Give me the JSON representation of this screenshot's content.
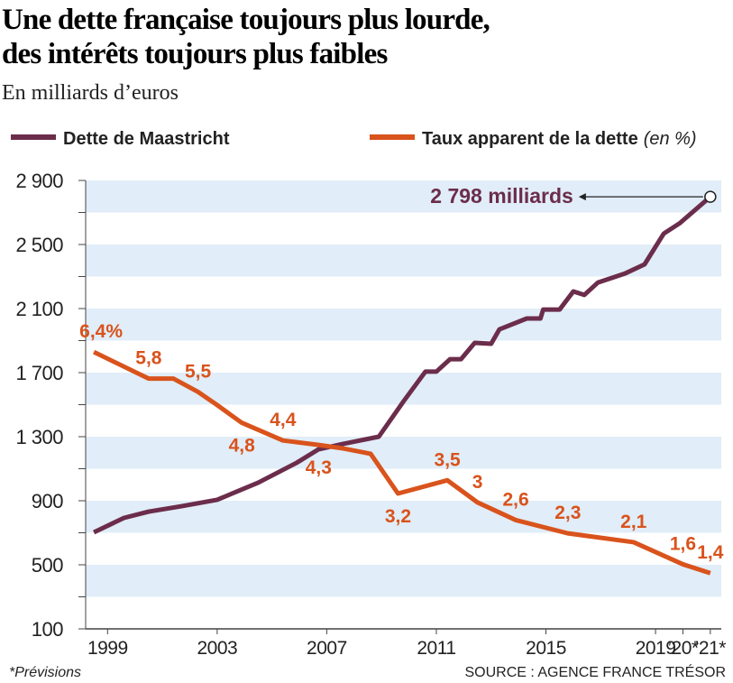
{
  "chart_data": {
    "type": "line",
    "title": [
      "Une dette française toujours plus lourde,",
      "des intérêts toujours plus faibles"
    ],
    "subtitle": "En milliards d’euros",
    "xlim": [
      1998.2,
      2021.4
    ],
    "xticks": [
      1999,
      2003,
      2007,
      2011,
      2015,
      2019,
      {
        "value": 2020,
        "label": "’20*"
      },
      {
        "value": 2021,
        "label": "’21*"
      }
    ],
    "ylim": [
      100,
      2900
    ],
    "yticks": [
      {
        "value": 100,
        "label": "100"
      },
      {
        "value": 500,
        "label": "500"
      },
      {
        "value": 900,
        "label": "900"
      },
      {
        "value": 1300,
        "label": "1 300"
      },
      {
        "value": 1700,
        "label": "1 700"
      },
      {
        "value": 2100,
        "label": "2 100"
      },
      {
        "value": 2500,
        "label": "2 500"
      },
      {
        "value": 2900,
        "label": "2 900"
      }
    ],
    "y2lim": [
      0.14,
      10.28
    ],
    "band_color": "#e1edf8",
    "series": [
      {
        "name": "Dette de Maastricht",
        "color": "#6b2d4b",
        "x": [
          1998.5,
          1999.6,
          2000.5,
          2001.7,
          2003.0,
          2004.5,
          2005.9,
          2006.7,
          2007.6,
          2008.9,
          2009.8,
          2010.6,
          2011.0,
          2011.5,
          2011.9,
          2012.4,
          2013.0,
          2013.3,
          2014.3,
          2014.8,
          2014.9,
          2015.5,
          2016.0,
          2016.4,
          2016.9,
          2017.9,
          2018.6,
          2019.3,
          2019.9,
          2021
        ],
        "values": [
          703,
          793,
          832,
          866,
          906,
          1013,
          1137,
          1221,
          1255,
          1300,
          1520,
          1706,
          1706,
          1784,
          1784,
          1886,
          1880,
          1970,
          2038,
          2038,
          2094,
          2094,
          2207,
          2185,
          2263,
          2320,
          2376,
          2568,
          2635,
          2798
        ],
        "annotation": "2 798 milliards"
      },
      {
        "name": "Taux apparent de la dette",
        "unit": "(en %)",
        "color": "#d9531c",
        "axis": "y2",
        "x": [
          1998.5,
          2000.5,
          2001.4,
          2002.3,
          2003.0,
          2003.9,
          2005.4,
          2006.7,
          2007.6,
          2008.6,
          2009.6,
          2011.4,
          2012.5,
          2013.9,
          2015.8,
          2018.2,
          2020.0,
          2021
        ],
        "values": [
          6.4,
          5.8,
          5.8,
          5.5,
          5.2,
          4.8,
          4.4,
          4.3,
          4.22,
          4.1,
          3.2,
          3.5,
          3,
          2.6,
          2.3,
          2.1,
          1.6,
          1.4
        ],
        "value_labels": [
          "6,4%",
          "5,8",
          null,
          "5,5",
          null,
          "4,8",
          "4,4",
          "4,3",
          null,
          null,
          "3,2",
          "3,5",
          "3",
          "2,6",
          "2,3",
          "2,1",
          "1,6",
          "1,4"
        ]
      }
    ],
    "footnote": "*Prévisions",
    "source": "SOURCE : AGENCE FRANCE TRÉSOR"
  }
}
